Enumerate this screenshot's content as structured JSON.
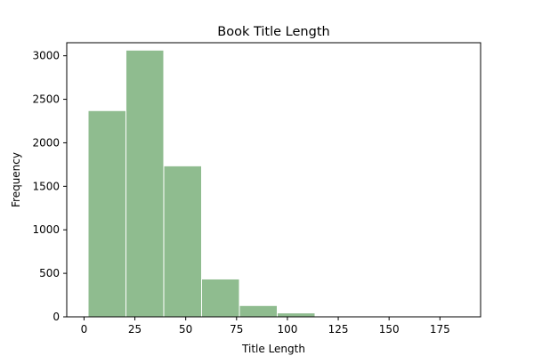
{
  "chart_data": {
    "type": "bar",
    "subtype": "histogram",
    "title": "Book Title Length",
    "xlabel": "Title Length",
    "ylabel": "Frequency",
    "xlim": [
      -8.5,
      195
    ],
    "ylim": [
      0,
      3150
    ],
    "xticks": [
      0,
      25,
      50,
      75,
      100,
      125,
      150,
      175
    ],
    "yticks": [
      0,
      500,
      1000,
      1500,
      2000,
      2500,
      3000
    ],
    "bins": [
      {
        "start": 2.0,
        "end": 20.6,
        "count": 2370
      },
      {
        "start": 20.6,
        "end": 39.2,
        "count": 3065
      },
      {
        "start": 39.2,
        "end": 57.8,
        "count": 1735
      },
      {
        "start": 57.8,
        "end": 76.4,
        "count": 435
      },
      {
        "start": 76.4,
        "end": 95.0,
        "count": 130
      },
      {
        "start": 95.0,
        "end": 113.6,
        "count": 45
      },
      {
        "start": 113.6,
        "end": 132.2,
        "count": 3
      },
      {
        "start": 132.2,
        "end": 150.8,
        "count": 1
      },
      {
        "start": 150.8,
        "end": 169.4,
        "count": 1
      },
      {
        "start": 169.4,
        "end": 188.0,
        "count": 1
      }
    ],
    "grid": false,
    "legend": "none",
    "bar_color": "#8fbc8f",
    "edge_color": "#ffffff"
  }
}
